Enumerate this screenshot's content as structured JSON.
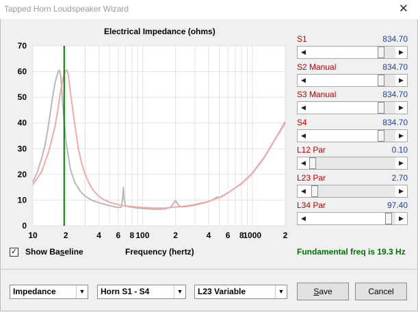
{
  "window": {
    "title": "Tapped Horn Loudspeaker Wizard",
    "close_glyph": "✕"
  },
  "chart": {
    "title": "Electrical Impedance (ohms)",
    "xlabel": "Frequency (hertz)"
  },
  "chart_data": {
    "type": "line",
    "title": "Electrical Impedance (ohms)",
    "xlabel": "Frequency (hertz)",
    "ylabel": "",
    "xscale": "log",
    "xlim": [
      10,
      2000
    ],
    "ylim": [
      0,
      70
    ],
    "yticks": [
      0,
      10,
      20,
      30,
      40,
      50,
      60,
      70
    ],
    "xtick_labels": [
      {
        "v": 10,
        "t": "10"
      },
      {
        "v": 20,
        "t": "2"
      },
      {
        "v": 40,
        "t": "4"
      },
      {
        "v": 60,
        "t": "6"
      },
      {
        "v": 80,
        "t": "8"
      },
      {
        "v": 100,
        "t": "100"
      },
      {
        "v": 200,
        "t": "2"
      },
      {
        "v": 400,
        "t": "4"
      },
      {
        "v": 600,
        "t": "6"
      },
      {
        "v": 800,
        "t": "8"
      },
      {
        "v": 1000,
        "t": "1000"
      },
      {
        "v": 2000,
        "t": "2"
      }
    ],
    "grid": true,
    "marker_frequency": 19.3,
    "series": [
      {
        "role": "baseline",
        "color": "#b8b8b8",
        "x": [
          10,
          11,
          12,
          13,
          14,
          15,
          16,
          17,
          17.5,
          18,
          19,
          20,
          22,
          24,
          27,
          30,
          35,
          40,
          50,
          60,
          64,
          66,
          67,
          68,
          70,
          75,
          80,
          90,
          100,
          120,
          140,
          160,
          180,
          190,
          200,
          210,
          220,
          240,
          300,
          400,
          450,
          480,
          500,
          520,
          600,
          800,
          1000,
          1300,
          1600,
          2000
        ],
        "y": [
          17,
          21,
          26,
          32,
          40,
          49,
          56,
          60,
          60.5,
          58,
          44,
          33,
          22,
          17,
          13.5,
          11.5,
          9.8,
          9,
          7.8,
          7.1,
          7.2,
          11,
          15,
          10.5,
          7.8,
          7.4,
          7.2,
          6.9,
          6.7,
          6.5,
          6.4,
          6.6,
          7.2,
          8.5,
          9.8,
          8.4,
          7.4,
          7.4,
          8,
          9.4,
          10.5,
          11.2,
          10.8,
          11.2,
          12.8,
          16.5,
          20.5,
          27,
          33.5,
          40.5
        ]
      },
      {
        "role": "response",
        "color": "#f2a9a6",
        "x": [
          10,
          12,
          14,
          16,
          17,
          18,
          19,
          20,
          20.5,
          21,
          22,
          24,
          26,
          28,
          30,
          33,
          36,
          40,
          45,
          50,
          60,
          70,
          80,
          100,
          130,
          160,
          200,
          260,
          300,
          400,
          500,
          600,
          800,
          1000,
          1300,
          1600,
          2000
        ],
        "y": [
          16,
          21,
          29,
          39,
          46,
          53,
          58,
          60.5,
          60.5,
          59,
          52,
          40,
          30,
          24,
          20,
          16,
          13.5,
          11.5,
          10,
          9.2,
          8.2,
          7.7,
          7.5,
          7.1,
          6.9,
          6.9,
          7.3,
          7.8,
          8.3,
          9.5,
          11,
          12.8,
          16.4,
          20.3,
          26.8,
          33.3,
          40
        ]
      }
    ]
  },
  "sliders": [
    {
      "name": "S1",
      "value": "834.70",
      "level": 0.88
    },
    {
      "name": "S2  Manual",
      "value": "834.70",
      "level": 0.88
    },
    {
      "name": "S3  Manual",
      "value": "834.70",
      "level": 0.88
    },
    {
      "name": "S4",
      "value": "834.70",
      "level": 0.88
    },
    {
      "name": "L12  Par",
      "value": "0.10",
      "level": 0.0
    },
    {
      "name": "L23  Par",
      "value": "2.70",
      "level": 0.03
    },
    {
      "name": "L34  Par",
      "value": "97.40",
      "level": 0.97
    }
  ],
  "baseline": {
    "label": "Show Baseline",
    "checked": true,
    "check_glyph": "✓"
  },
  "fundamental": "Fundamental freq is 19.3 Hz",
  "selects": {
    "plot_type": "Impedance",
    "horn_range": "Horn S1 - S4",
    "variable": "L23 Variable",
    "arrow_glyph": "▼"
  },
  "buttons": {
    "save": "Save",
    "cancel": "Cancel"
  },
  "scroll_glyphs": {
    "left": "◀",
    "right": "▶"
  },
  "colors": {
    "label_red": "#c00000",
    "value_blue": "#1f3f9f",
    "fund_green": "#007000",
    "marker_green": "#008000"
  }
}
